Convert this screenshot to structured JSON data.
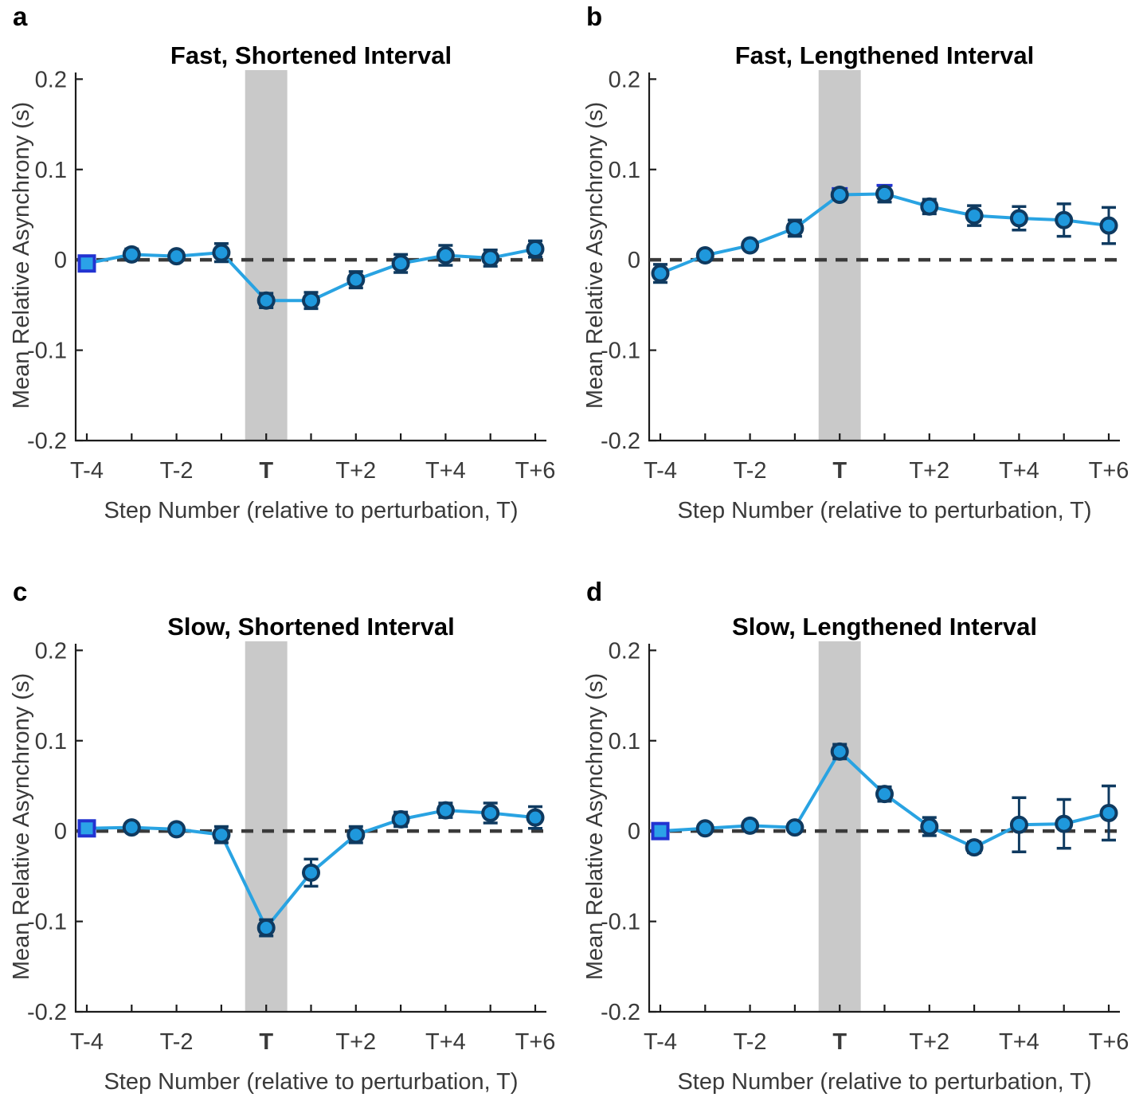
{
  "figure": {
    "background": "#FFFFFF",
    "xlabel": "Step Number (relative to perturbation, T)",
    "ylabel": "Mean Relative Asynchrony (s)",
    "x_ticks_all": [
      -4,
      -3,
      -2,
      -1,
      0,
      1,
      2,
      3,
      4,
      5,
      6
    ],
    "x_ticks_labeled": [
      -4,
      -2,
      0,
      2,
      4,
      6
    ],
    "x_tick_labels": [
      "T-4",
      "T-2",
      "T",
      "T+2",
      "T+4",
      "T+6"
    ],
    "y_ticks": [
      0.2,
      0.1,
      0,
      -0.1,
      -0.2
    ],
    "y_tick_labels": [
      "0.2",
      "0.1",
      "0",
      "-0.1",
      "-0.2"
    ],
    "ylim": [
      -0.2,
      0.21
    ],
    "colors": {
      "line": "#29A3E2",
      "marker_fill": "#1F98DC",
      "marker_edge": "#0F3A60",
      "error": "#0F3A60",
      "square_fill": "#2BA2E8",
      "square_edge": "#2233D1",
      "band": "#C9C9C9",
      "dashed": "#3A3A3A",
      "axis": "#1C1C1C",
      "tick_text": "#3A3A3A"
    }
  },
  "chart_data": [
    {
      "panel": "a",
      "title": "Fast, Shortened Interval",
      "type": "line",
      "x": [
        -4,
        -3,
        -2,
        -1,
        0,
        1,
        2,
        3,
        4,
        5,
        6
      ],
      "values": [
        -0.004,
        0.006,
        0.004,
        0.008,
        -0.045,
        -0.045,
        -0.022,
        -0.004,
        0.005,
        0.002,
        0.012
      ],
      "errors": [
        null,
        0.006,
        0.005,
        0.01,
        0.008,
        0.009,
        0.009,
        0.01,
        0.011,
        0.009,
        0.009
      ],
      "marker_types": [
        "square",
        "circle",
        "circle",
        "circle",
        "circle",
        "circle",
        "circle",
        "circle",
        "circle",
        "circle",
        "circle"
      ],
      "shaded_band": {
        "center": 0,
        "half_width_steps": 0.47
      },
      "extra_caps": []
    },
    {
      "panel": "b",
      "title": "Fast, Lengthened Interval",
      "type": "line",
      "x": [
        -4,
        -3,
        -2,
        -1,
        0,
        1,
        2,
        3,
        4,
        5,
        6
      ],
      "values": [
        -0.015,
        0.005,
        0.016,
        0.035,
        0.072,
        0.073,
        0.059,
        0.049,
        0.046,
        0.044,
        0.038
      ],
      "errors": [
        0.01,
        0.004,
        0.004,
        0.009,
        0.005,
        0.009,
        0.008,
        0.011,
        0.013,
        0.018,
        0.02
      ],
      "marker_types": [
        "circle",
        "circle",
        "circle",
        "circle",
        "circle",
        "circle",
        "circle",
        "circle",
        "circle",
        "circle",
        "circle"
      ],
      "shaded_band": {
        "center": 0,
        "half_width_steps": 0.47
      },
      "extra_caps": [
        {
          "x": 0,
          "y": 0.079
        },
        {
          "x": 1,
          "y": 0.0825
        }
      ]
    },
    {
      "panel": "c",
      "title": "Slow, Shortened Interval",
      "type": "line",
      "x": [
        -4,
        -3,
        -2,
        -1,
        0,
        1,
        2,
        3,
        4,
        5,
        6
      ],
      "values": [
        0.003,
        0.004,
        0.002,
        -0.004,
        -0.107,
        -0.046,
        -0.004,
        0.013,
        0.023,
        0.02,
        0.015
      ],
      "errors": [
        null,
        0.004,
        0.005,
        0.009,
        0.009,
        0.015,
        0.009,
        0.008,
        0.008,
        0.011,
        0.012
      ],
      "marker_types": [
        "square",
        "circle",
        "circle",
        "circle",
        "circle",
        "circle",
        "circle",
        "circle",
        "circle",
        "circle",
        "circle"
      ],
      "shaded_band": {
        "center": 0,
        "half_width_steps": 0.47
      },
      "extra_caps": []
    },
    {
      "panel": "d",
      "title": "Slow, Lengthened Interval",
      "type": "line",
      "x": [
        -4,
        -3,
        -2,
        -1,
        0,
        1,
        2,
        3,
        4,
        5,
        6
      ],
      "values": [
        0.0,
        0.003,
        0.006,
        0.004,
        0.088,
        0.041,
        0.005,
        -0.018,
        0.007,
        0.008,
        0.02
      ],
      "errors": [
        null,
        0.004,
        0.005,
        0.005,
        0.008,
        0.008,
        0.01,
        0.006,
        0.03,
        0.027,
        0.03
      ],
      "marker_types": [
        "square",
        "circle",
        "circle",
        "circle",
        "circle",
        "circle",
        "circle",
        "circle",
        "circle",
        "circle",
        "circle"
      ],
      "shaded_band": {
        "center": 0,
        "half_width_steps": 0.47
      },
      "extra_caps": []
    }
  ]
}
